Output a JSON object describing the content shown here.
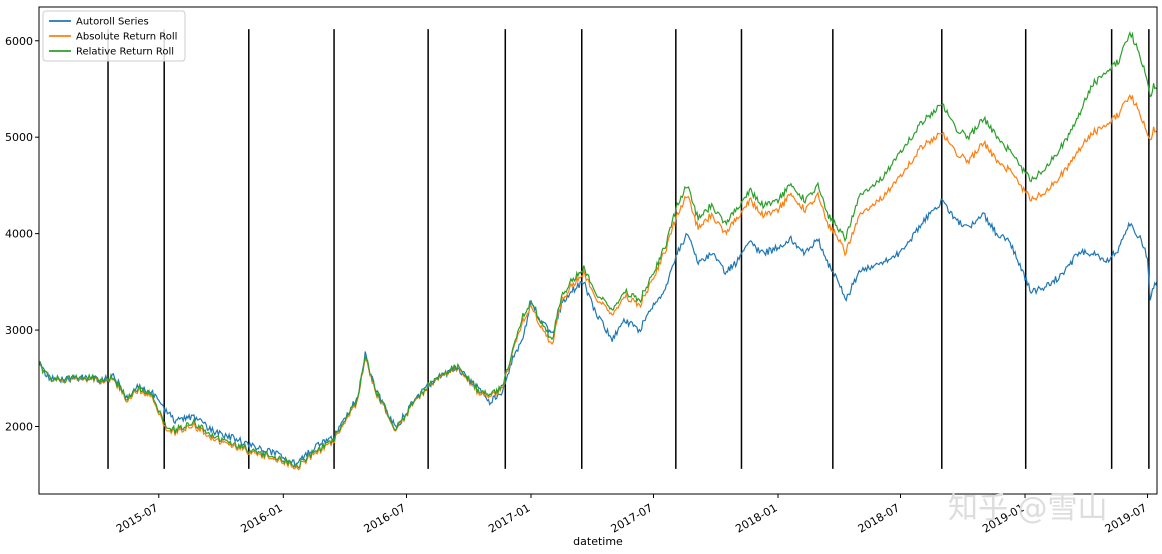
{
  "chart_data": {
    "type": "line",
    "title": "",
    "xlabel": "datetime",
    "ylabel": "",
    "xlim": [
      "2015-01-05",
      "2019-07-15"
    ],
    "ylim": [
      1300,
      6350
    ],
    "grid": false,
    "legend_position": "top-left",
    "x_ticks": [
      {
        "date": "2015-07-01",
        "label": "2015-07"
      },
      {
        "date": "2016-01-01",
        "label": "2016-01"
      },
      {
        "date": "2016-07-01",
        "label": "2016-07"
      },
      {
        "date": "2017-01-01",
        "label": "2017-01"
      },
      {
        "date": "2017-07-01",
        "label": "2017-07"
      },
      {
        "date": "2018-01-01",
        "label": "2018-01"
      },
      {
        "date": "2018-07-01",
        "label": "2018-07"
      },
      {
        "date": "2019-01-01",
        "label": "2019-01"
      },
      {
        "date": "2019-07-01",
        "label": "2019-07"
      }
    ],
    "y_ticks": [
      2000,
      3000,
      4000,
      5000,
      6000
    ],
    "vertical_lines": {
      "dates": [
        "2015-04-17",
        "2015-07-09",
        "2015-11-11",
        "2016-03-16",
        "2016-08-02",
        "2016-11-24",
        "2017-03-17",
        "2017-08-03",
        "2017-11-08",
        "2018-03-23",
        "2018-08-31",
        "2019-01-02",
        "2019-05-09",
        "2019-07-03"
      ],
      "ymin": 1560,
      "ymax": 6120
    },
    "series": [
      {
        "name": "Autoroll Series",
        "color": "#1f77b4",
        "points": [
          [
            "2015-01-05",
            2650
          ],
          [
            "2015-01-20",
            2500
          ],
          [
            "2015-02-15",
            2490
          ],
          [
            "2015-03-15",
            2510
          ],
          [
            "2015-04-10",
            2480
          ],
          [
            "2015-04-25",
            2530
          ],
          [
            "2015-05-15",
            2300
          ],
          [
            "2015-06-01",
            2420
          ],
          [
            "2015-06-20",
            2360
          ],
          [
            "2015-07-10",
            2180
          ],
          [
            "2015-07-25",
            2050
          ],
          [
            "2015-08-20",
            2100
          ],
          [
            "2015-09-20",
            1950
          ],
          [
            "2015-10-20",
            1880
          ],
          [
            "2015-11-20",
            1780
          ],
          [
            "2016-01-01",
            1700
          ],
          [
            "2016-01-20",
            1600
          ],
          [
            "2016-02-05",
            1720
          ],
          [
            "2016-02-20",
            1800
          ],
          [
            "2016-03-15",
            1880
          ],
          [
            "2016-04-01",
            2100
          ],
          [
            "2016-04-20",
            2300
          ],
          [
            "2016-05-01",
            2760
          ],
          [
            "2016-05-15",
            2400
          ],
          [
            "2016-06-15",
            1980
          ],
          [
            "2016-07-15",
            2300
          ],
          [
            "2016-08-15",
            2500
          ],
          [
            "2016-09-15",
            2600
          ],
          [
            "2016-10-15",
            2400
          ],
          [
            "2016-11-01",
            2260
          ],
          [
            "2016-11-20",
            2350
          ],
          [
            "2016-12-05",
            2700
          ],
          [
            "2016-12-20",
            2900
          ],
          [
            "2017-01-01",
            3300
          ],
          [
            "2017-01-15",
            3100
          ],
          [
            "2017-02-01",
            2950
          ],
          [
            "2017-02-15",
            3250
          ],
          [
            "2017-03-01",
            3400
          ],
          [
            "2017-03-20",
            3500
          ],
          [
            "2017-04-05",
            3200
          ],
          [
            "2017-05-01",
            2900
          ],
          [
            "2017-05-20",
            3100
          ],
          [
            "2017-06-10",
            3000
          ],
          [
            "2017-07-01",
            3250
          ],
          [
            "2017-07-20",
            3450
          ],
          [
            "2017-08-05",
            3800
          ],
          [
            "2017-08-20",
            4000
          ],
          [
            "2017-09-05",
            3700
          ],
          [
            "2017-09-25",
            3800
          ],
          [
            "2017-10-15",
            3600
          ],
          [
            "2017-11-01",
            3700
          ],
          [
            "2017-11-20",
            3900
          ],
          [
            "2017-12-10",
            3800
          ],
          [
            "2018-01-01",
            3850
          ],
          [
            "2018-01-20",
            3950
          ],
          [
            "2018-02-10",
            3800
          ],
          [
            "2018-03-01",
            3950
          ],
          [
            "2018-03-15",
            3700
          ],
          [
            "2018-04-01",
            3500
          ],
          [
            "2018-04-10",
            3300
          ],
          [
            "2018-05-01",
            3600
          ],
          [
            "2018-06-01",
            3700
          ],
          [
            "2018-07-01",
            3800
          ],
          [
            "2018-08-01",
            4100
          ],
          [
            "2018-09-01",
            4350
          ],
          [
            "2018-09-20",
            4150
          ],
          [
            "2018-10-10",
            4050
          ],
          [
            "2018-11-01",
            4200
          ],
          [
            "2018-11-20",
            4000
          ],
          [
            "2018-12-10",
            3900
          ],
          [
            "2019-01-10",
            3400
          ],
          [
            "2019-02-01",
            3450
          ],
          [
            "2019-03-01",
            3600
          ],
          [
            "2019-03-20",
            3800
          ],
          [
            "2019-04-10",
            3800
          ],
          [
            "2019-05-01",
            3700
          ],
          [
            "2019-05-20",
            3850
          ],
          [
            "2019-06-05",
            4100
          ],
          [
            "2019-06-20",
            3950
          ],
          [
            "2019-07-01",
            3750
          ],
          [
            "2019-07-05",
            3300
          ],
          [
            "2019-07-10",
            3450
          ],
          [
            "2019-07-15",
            3500
          ]
        ]
      },
      {
        "name": "Absolute Return Roll",
        "color": "#ff7f0e",
        "points": [
          [
            "2015-01-05",
            2650
          ],
          [
            "2015-01-20",
            2500
          ],
          [
            "2015-02-15",
            2480
          ],
          [
            "2015-03-15",
            2500
          ],
          [
            "2015-04-10",
            2460
          ],
          [
            "2015-04-25",
            2500
          ],
          [
            "2015-05-15",
            2260
          ],
          [
            "2015-06-01",
            2380
          ],
          [
            "2015-06-20",
            2320
          ],
          [
            "2015-07-10",
            2000
          ],
          [
            "2015-07-25",
            1940
          ],
          [
            "2015-08-20",
            2020
          ],
          [
            "2015-09-20",
            1860
          ],
          [
            "2015-10-20",
            1800
          ],
          [
            "2015-11-20",
            1720
          ],
          [
            "2016-01-01",
            1640
          ],
          [
            "2016-01-20",
            1560
          ],
          [
            "2016-02-05",
            1660
          ],
          [
            "2016-02-20",
            1740
          ],
          [
            "2016-03-15",
            1840
          ],
          [
            "2016-04-01",
            2060
          ],
          [
            "2016-04-20",
            2260
          ],
          [
            "2016-05-01",
            2740
          ],
          [
            "2016-05-15",
            2380
          ],
          [
            "2016-06-15",
            1950
          ],
          [
            "2016-07-15",
            2280
          ],
          [
            "2016-08-15",
            2500
          ],
          [
            "2016-09-15",
            2620
          ],
          [
            "2016-10-15",
            2350
          ],
          [
            "2016-11-01",
            2300
          ],
          [
            "2016-11-20",
            2400
          ],
          [
            "2016-12-05",
            2780
          ],
          [
            "2016-12-20",
            3100
          ],
          [
            "2017-01-01",
            3250
          ],
          [
            "2017-01-15",
            3050
          ],
          [
            "2017-02-01",
            2850
          ],
          [
            "2017-02-15",
            3300
          ],
          [
            "2017-03-01",
            3450
          ],
          [
            "2017-03-20",
            3600
          ],
          [
            "2017-04-05",
            3350
          ],
          [
            "2017-05-01",
            3150
          ],
          [
            "2017-05-20",
            3350
          ],
          [
            "2017-06-10",
            3250
          ],
          [
            "2017-07-01",
            3550
          ],
          [
            "2017-07-20",
            3850
          ],
          [
            "2017-08-05",
            4200
          ],
          [
            "2017-08-20",
            4400
          ],
          [
            "2017-09-05",
            4050
          ],
          [
            "2017-09-25",
            4200
          ],
          [
            "2017-10-15",
            4000
          ],
          [
            "2017-11-01",
            4150
          ],
          [
            "2017-11-20",
            4350
          ],
          [
            "2017-12-10",
            4200
          ],
          [
            "2018-01-01",
            4250
          ],
          [
            "2018-01-20",
            4400
          ],
          [
            "2018-02-10",
            4250
          ],
          [
            "2018-03-01",
            4400
          ],
          [
            "2018-03-15",
            4100
          ],
          [
            "2018-04-01",
            3950
          ],
          [
            "2018-04-10",
            3800
          ],
          [
            "2018-05-01",
            4200
          ],
          [
            "2018-06-01",
            4350
          ],
          [
            "2018-07-01",
            4600
          ],
          [
            "2018-08-01",
            4900
          ],
          [
            "2018-09-01",
            5050
          ],
          [
            "2018-09-20",
            4850
          ],
          [
            "2018-10-10",
            4750
          ],
          [
            "2018-11-01",
            4950
          ],
          [
            "2018-11-20",
            4750
          ],
          [
            "2018-12-10",
            4650
          ],
          [
            "2019-01-10",
            4350
          ],
          [
            "2019-02-01",
            4450
          ],
          [
            "2019-03-01",
            4650
          ],
          [
            "2019-03-20",
            4850
          ],
          [
            "2019-04-10",
            5050
          ],
          [
            "2019-05-01",
            5100
          ],
          [
            "2019-05-20",
            5250
          ],
          [
            "2019-06-05",
            5450
          ],
          [
            "2019-06-20",
            5250
          ],
          [
            "2019-07-01",
            5050
          ],
          [
            "2019-07-05",
            4950
          ],
          [
            "2019-07-10",
            5100
          ],
          [
            "2019-07-15",
            5050
          ]
        ]
      },
      {
        "name": "Relative Return Roll",
        "color": "#2ca02c",
        "points": [
          [
            "2015-01-05",
            2650
          ],
          [
            "2015-01-20",
            2500
          ],
          [
            "2015-02-15",
            2490
          ],
          [
            "2015-03-15",
            2510
          ],
          [
            "2015-04-10",
            2470
          ],
          [
            "2015-04-25",
            2510
          ],
          [
            "2015-05-15",
            2280
          ],
          [
            "2015-06-01",
            2400
          ],
          [
            "2015-06-20",
            2340
          ],
          [
            "2015-07-10",
            2030
          ],
          [
            "2015-07-25",
            1960
          ],
          [
            "2015-08-20",
            2050
          ],
          [
            "2015-09-20",
            1890
          ],
          [
            "2015-10-20",
            1820
          ],
          [
            "2015-11-20",
            1740
          ],
          [
            "2016-01-01",
            1660
          ],
          [
            "2016-01-20",
            1580
          ],
          [
            "2016-02-05",
            1680
          ],
          [
            "2016-02-20",
            1760
          ],
          [
            "2016-03-15",
            1860
          ],
          [
            "2016-04-01",
            2080
          ],
          [
            "2016-04-20",
            2280
          ],
          [
            "2016-05-01",
            2760
          ],
          [
            "2016-05-15",
            2400
          ],
          [
            "2016-06-15",
            1960
          ],
          [
            "2016-07-15",
            2290
          ],
          [
            "2016-08-15",
            2510
          ],
          [
            "2016-09-15",
            2630
          ],
          [
            "2016-10-15",
            2370
          ],
          [
            "2016-11-01",
            2320
          ],
          [
            "2016-11-20",
            2420
          ],
          [
            "2016-12-05",
            2800
          ],
          [
            "2016-12-20",
            3150
          ],
          [
            "2017-01-01",
            3300
          ],
          [
            "2017-01-15",
            3100
          ],
          [
            "2017-02-01",
            2900
          ],
          [
            "2017-02-15",
            3350
          ],
          [
            "2017-03-01",
            3500
          ],
          [
            "2017-03-20",
            3650
          ],
          [
            "2017-04-05",
            3400
          ],
          [
            "2017-05-01",
            3200
          ],
          [
            "2017-05-20",
            3400
          ],
          [
            "2017-06-10",
            3300
          ],
          [
            "2017-07-01",
            3600
          ],
          [
            "2017-07-20",
            3900
          ],
          [
            "2017-08-05",
            4300
          ],
          [
            "2017-08-20",
            4500
          ],
          [
            "2017-09-05",
            4150
          ],
          [
            "2017-09-25",
            4300
          ],
          [
            "2017-10-15",
            4100
          ],
          [
            "2017-11-01",
            4250
          ],
          [
            "2017-11-20",
            4450
          ],
          [
            "2017-12-10",
            4300
          ],
          [
            "2018-01-01",
            4350
          ],
          [
            "2018-01-20",
            4500
          ],
          [
            "2018-02-10",
            4350
          ],
          [
            "2018-03-01",
            4500
          ],
          [
            "2018-03-15",
            4200
          ],
          [
            "2018-04-01",
            4050
          ],
          [
            "2018-04-10",
            3950
          ],
          [
            "2018-05-01",
            4400
          ],
          [
            "2018-06-01",
            4550
          ],
          [
            "2018-07-01",
            4850
          ],
          [
            "2018-08-01",
            5150
          ],
          [
            "2018-09-01",
            5350
          ],
          [
            "2018-09-20",
            5100
          ],
          [
            "2018-10-10",
            5000
          ],
          [
            "2018-11-01",
            5200
          ],
          [
            "2018-11-20",
            5000
          ],
          [
            "2018-12-10",
            4850
          ],
          [
            "2019-01-10",
            4550
          ],
          [
            "2019-02-01",
            4700
          ],
          [
            "2019-03-01",
            4950
          ],
          [
            "2019-03-20",
            5200
          ],
          [
            "2019-04-10",
            5550
          ],
          [
            "2019-05-01",
            5650
          ],
          [
            "2019-05-20",
            5800
          ],
          [
            "2019-06-05",
            6100
          ],
          [
            "2019-06-20",
            5850
          ],
          [
            "2019-07-01",
            5600
          ],
          [
            "2019-07-05",
            5400
          ],
          [
            "2019-07-10",
            5550
          ],
          [
            "2019-07-15",
            5500
          ]
        ]
      }
    ]
  },
  "watermark": {
    "text": "知乎 @雪山",
    "cjk_glyph": "知乎",
    "handle": "@雪山"
  }
}
